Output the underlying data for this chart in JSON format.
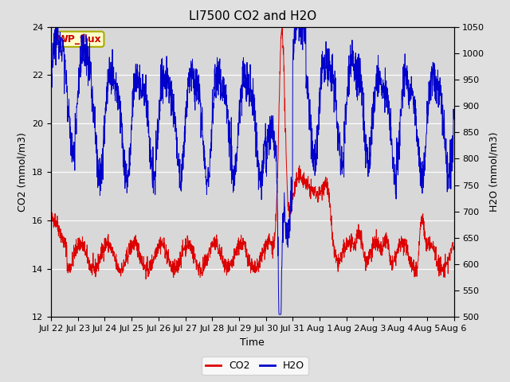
{
  "title": "LI7500 CO2 and H2O",
  "xlabel": "Time",
  "ylabel_left": "CO2 (mmol/m3)",
  "ylabel_right": "H2O (mmol/m3)",
  "ylim_left": [
    12,
    24
  ],
  "ylim_right": [
    500,
    1050
  ],
  "yticks_left": [
    12,
    14,
    16,
    18,
    20,
    22,
    24
  ],
  "yticks_right": [
    500,
    550,
    600,
    650,
    700,
    750,
    800,
    850,
    900,
    950,
    1000,
    1050
  ],
  "bg_color": "#e0e0e0",
  "plot_bg_color": "#d8d8d8",
  "co2_color": "#dd0000",
  "h2o_color": "#0000cc",
  "legend_co2": "CO2",
  "legend_h2o": "H2O",
  "annotation_text": "WP_flux",
  "annotation_bg": "#ffffcc",
  "annotation_border": "#aaaa00",
  "title_fontsize": 11,
  "axis_fontsize": 9,
  "tick_fontsize": 8,
  "legend_fontsize": 9,
  "xtick_labels": [
    "Jul 22",
    "Jul 23",
    "Jul 24",
    "Jul 25",
    "Jul 26",
    "Jul 27",
    "Jul 28",
    "Jul 29",
    "Jul 30",
    "Jul 31",
    "Aug 1",
    "Aug 2",
    "Aug 3",
    "Aug 4",
    "Aug 5",
    "Aug 6"
  ],
  "n_points": 2000
}
